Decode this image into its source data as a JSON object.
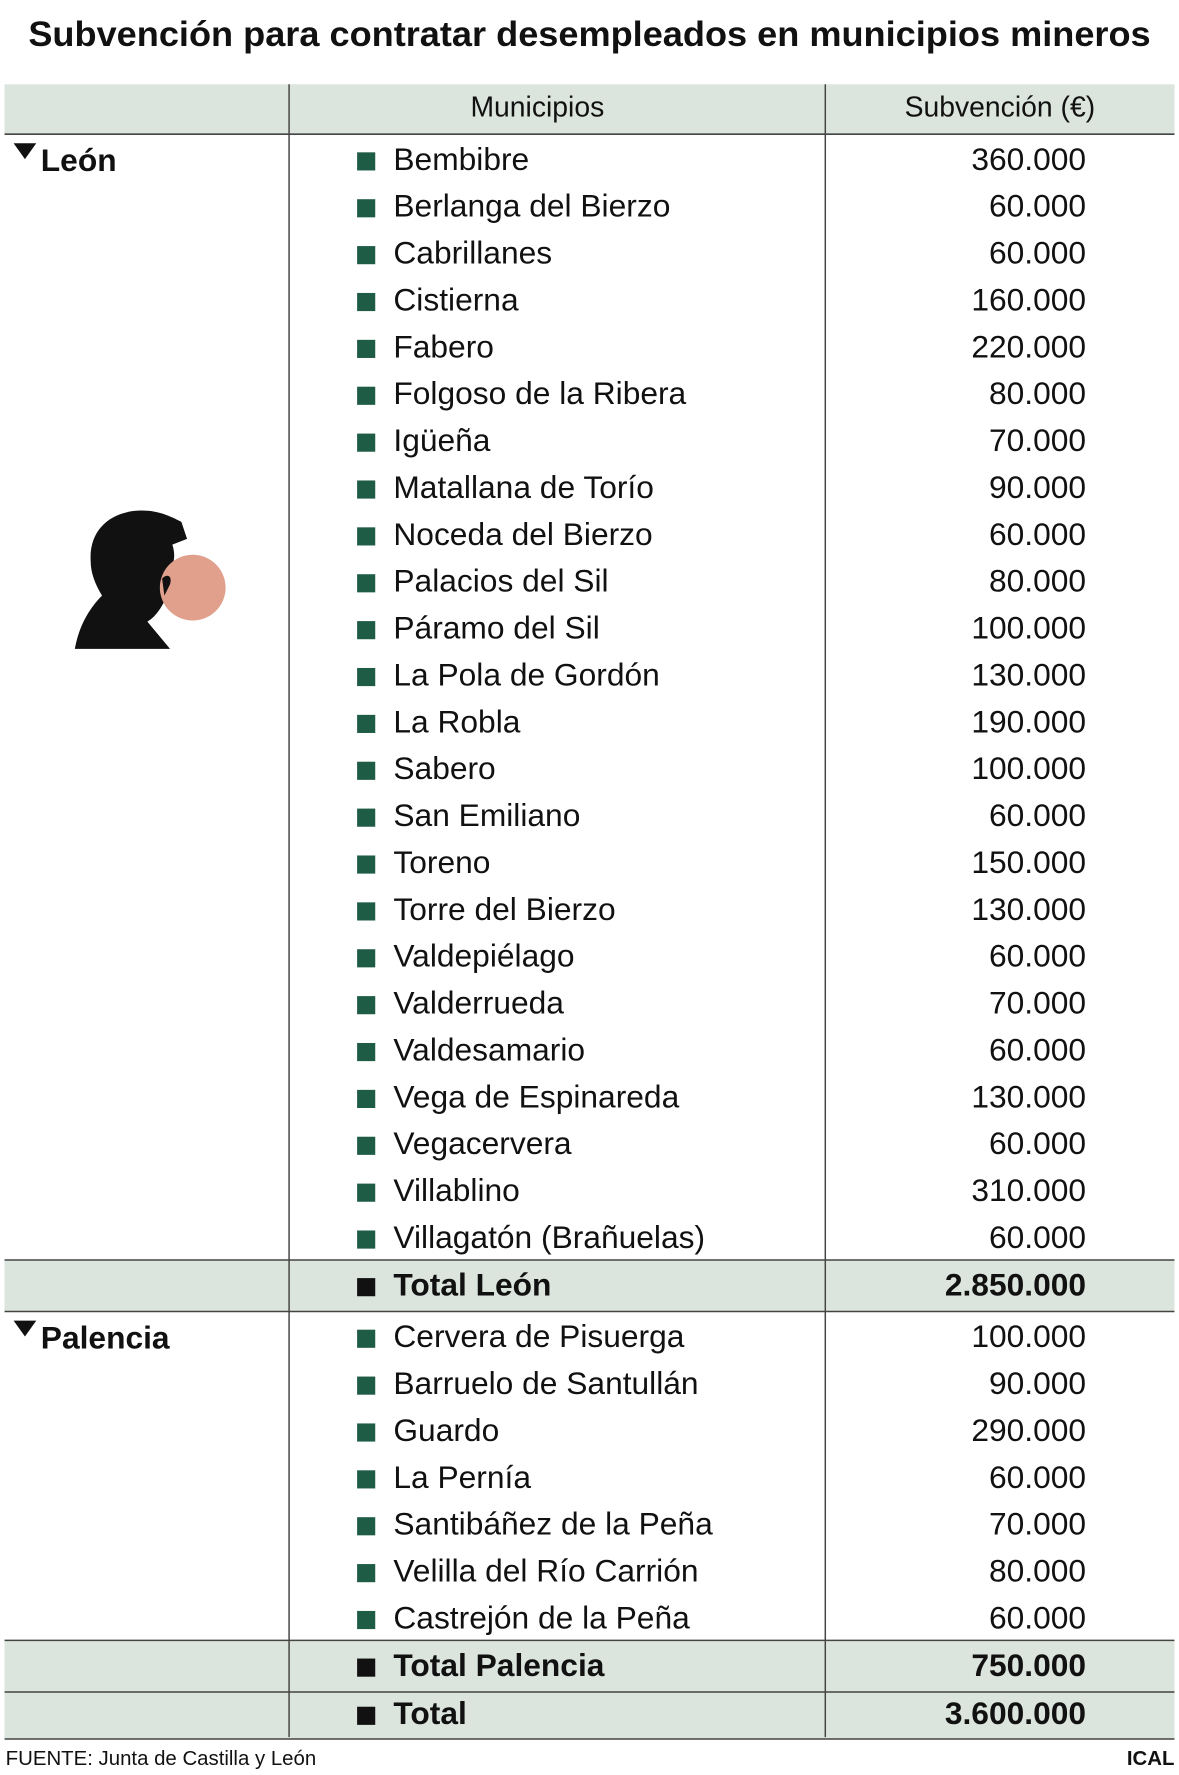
{
  "title": "Subvención para contratar desempleados en municipios mineros",
  "table": {
    "header": [
      "Municipios",
      "Subvención (€)"
    ],
    "groups": [
      {
        "name": "León",
        "rows": [
          [
            "Bembibre",
            "360.000"
          ],
          [
            "Berlanga del Bierzo",
            "60.000"
          ],
          [
            "Cabrillanes",
            "60.000"
          ],
          [
            "Cistierna",
            "160.000"
          ],
          [
            "Fabero",
            "220.000"
          ],
          [
            "Folgoso de la Ribera",
            "80.000"
          ],
          [
            "Igüeña",
            "70.000"
          ],
          [
            "Matallana de Torío",
            "90.000"
          ],
          [
            "Noceda del Bierzo",
            "60.000"
          ],
          [
            "Palacios del Sil",
            "80.000"
          ],
          [
            "Páramo del Sil",
            "100.000"
          ],
          [
            "La Pola de Gordón",
            "130.000"
          ],
          [
            "La Robla",
            "190.000"
          ],
          [
            "Sabero",
            "100.000"
          ],
          [
            "San Emiliano",
            "60.000"
          ],
          [
            "Toreno",
            "150.000"
          ],
          [
            "Torre del Bierzo",
            "130.000"
          ],
          [
            "Valdepiélago",
            "60.000"
          ],
          [
            "Valderrueda",
            "70.000"
          ],
          [
            "Valdesamario",
            "60.000"
          ],
          [
            "Vega de Espinareda",
            "130.000"
          ],
          [
            "Vegacervera",
            "60.000"
          ],
          [
            "Villablino",
            "310.000"
          ],
          [
            "Villagatón (Brañuelas)",
            "60.000"
          ]
        ],
        "total": [
          "Total León",
          "2.850.000"
        ]
      },
      {
        "name": "Palencia",
        "rows": [
          [
            "Cervera de Pisuerga",
            "100.000"
          ],
          [
            "Barruelo de Santullán",
            "90.000"
          ],
          [
            "Guardo",
            "290.000"
          ],
          [
            "La Pernía",
            "60.000"
          ],
          [
            "Santibáñez de la Peña",
            "70.000"
          ],
          [
            "Velilla del Río Carrión",
            "80.000"
          ],
          [
            "Castrejón de la Peña",
            "60.000"
          ]
        ],
        "total": [
          "Total Palencia",
          "750.000"
        ]
      }
    ],
    "grand_total": [
      "Total",
      "3.600.000"
    ]
  },
  "source": "FUENTE: Junta de Castilla y León",
  "credit": "ICAL"
}
